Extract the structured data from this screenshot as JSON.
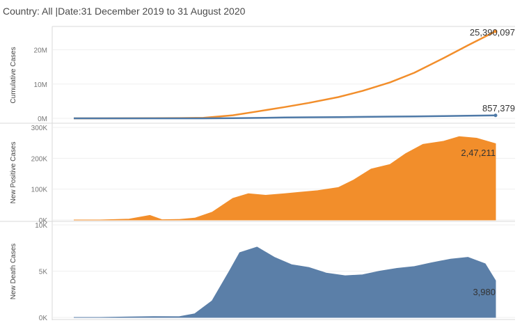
{
  "filter_title": "Country: All |Date:31 December 2019 to 31 August 2020",
  "colors": {
    "orange": "#f28e2b",
    "blue": "#4e79a7",
    "blue_fill": "#5b7fa8"
  },
  "chart_data": [
    {
      "type": "line",
      "ylabel": "Cumulative Cases",
      "ylim": [
        0,
        26000000
      ],
      "yticks": [
        "0M",
        "10M",
        "20M"
      ],
      "ytick_values": [
        0,
        10000000,
        20000000
      ],
      "x": [
        "2019-12-31",
        "2020-01-15",
        "2020-02-01",
        "2020-02-15",
        "2020-03-01",
        "2020-03-15",
        "2020-04-01",
        "2020-04-15",
        "2020-05-01",
        "2020-05-15",
        "2020-06-01",
        "2020-06-15",
        "2020-07-01",
        "2020-07-15",
        "2020-08-01",
        "2020-08-15",
        "2020-08-31"
      ],
      "series": [
        {
          "color": "orange",
          "values": [
            0,
            0,
            12000,
            60000,
            90000,
            170000,
            900000,
            2000000,
            3300000,
            4500000,
            6200000,
            8000000,
            10500000,
            13300000,
            17600000,
            21300000,
            25390097
          ],
          "end_label": "25,390,097"
        },
        {
          "color": "blue",
          "values": [
            0,
            0,
            260,
            1500,
            3000,
            6500,
            48000,
            130000,
            235000,
            305000,
            372000,
            433000,
            510000,
            578000,
            680000,
            770000,
            857379
          ],
          "end_label": "857,379"
        }
      ]
    },
    {
      "type": "area",
      "ylabel": "New Positive Cases",
      "ylim": [
        0,
        300000
      ],
      "yticks": [
        "0K",
        "100K",
        "200K",
        "300K"
      ],
      "ytick_values": [
        0,
        100000,
        200000,
        300000
      ],
      "x": [
        "2019-12-31",
        "2020-01-15",
        "2020-02-01",
        "2020-02-13",
        "2020-02-20",
        "2020-03-01",
        "2020-03-10",
        "2020-03-20",
        "2020-04-01",
        "2020-04-10",
        "2020-04-20",
        "2020-05-01",
        "2020-05-10",
        "2020-05-20",
        "2020-06-01",
        "2020-06-10",
        "2020-06-20",
        "2020-07-01",
        "2020-07-10",
        "2020-07-20",
        "2020-08-01",
        "2020-08-10",
        "2020-08-20",
        "2020-08-31"
      ],
      "series": [
        {
          "color": "orange",
          "values": [
            0,
            0,
            3000,
            15000,
            1000,
            1800,
            6000,
            25000,
            70000,
            85000,
            80000,
            85000,
            90000,
            95000,
            105000,
            130000,
            165000,
            180000,
            215000,
            245000,
            255000,
            270000,
            265000,
            247211
          ],
          "end_label": "2,47,211"
        }
      ]
    },
    {
      "type": "area",
      "ylabel": "New Death Cases",
      "ylim": [
        0,
        10000
      ],
      "yticks": [
        "0K",
        "5K",
        "10K"
      ],
      "ytick_values": [
        0,
        5000,
        10000
      ],
      "x": [
        "2019-12-31",
        "2020-01-15",
        "2020-02-01",
        "2020-02-15",
        "2020-03-01",
        "2020-03-10",
        "2020-03-20",
        "2020-03-30",
        "2020-04-05",
        "2020-04-15",
        "2020-04-25",
        "2020-05-05",
        "2020-05-15",
        "2020-05-25",
        "2020-06-05",
        "2020-06-15",
        "2020-06-25",
        "2020-07-05",
        "2020-07-15",
        "2020-07-25",
        "2020-08-05",
        "2020-08-15",
        "2020-08-25",
        "2020-08-31"
      ],
      "series": [
        {
          "color": "blue_fill",
          "values": [
            0,
            0,
            50,
            100,
            80,
            400,
            1800,
            5000,
            7000,
            7600,
            6500,
            5700,
            5400,
            4800,
            4500,
            4600,
            5000,
            5300,
            5500,
            5900,
            6300,
            6500,
            5800,
            3980
          ],
          "end_label": "3,980"
        }
      ]
    }
  ]
}
